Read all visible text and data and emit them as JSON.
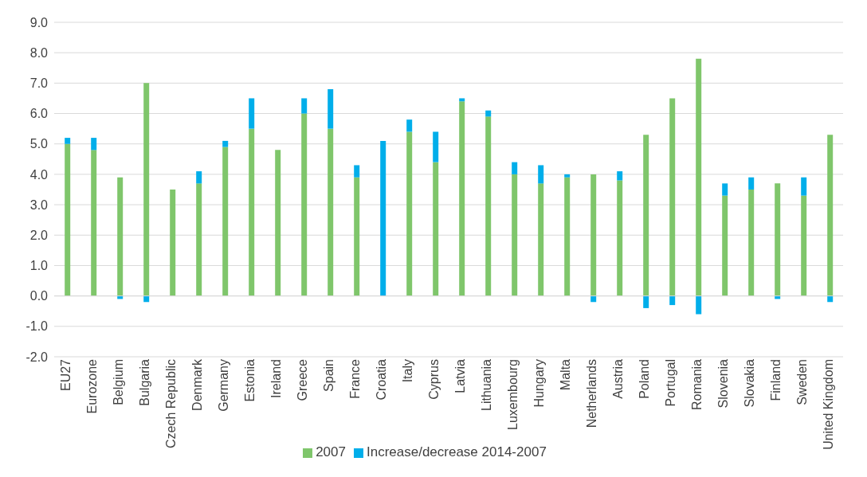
{
  "chart_data": {
    "type": "bar",
    "stacked": true,
    "categories": [
      "EU27",
      "Eurozone",
      "Belgium",
      "Bulgaria",
      "Czech Republic",
      "Denmark",
      "Germany",
      "Estonia",
      "Ireland",
      "Greece",
      "Spain",
      "France",
      "Croatia",
      "Italy",
      "Cyprus",
      "Latvia",
      "Lithuania",
      "Luxembourg",
      "Hungary",
      "Malta",
      "Netherlands",
      "Austria",
      "Poland",
      "Portugal",
      "Romania",
      "Slovenia",
      "Slovakia",
      "Finland",
      "Sweden",
      "United Kingdom"
    ],
    "series": [
      {
        "name": "2007",
        "color": "#7fc66b",
        "values": [
          5.0,
          4.8,
          3.9,
          7.0,
          3.5,
          3.7,
          4.9,
          5.5,
          4.8,
          6.0,
          5.5,
          3.9,
          null,
          5.4,
          4.4,
          6.4,
          5.9,
          4.0,
          3.7,
          3.9,
          4.0,
          3.8,
          5.3,
          6.5,
          7.8,
          3.3,
          3.5,
          3.7,
          3.3,
          5.3
        ]
      },
      {
        "name": "Increase/decrease 2014-2007",
        "color": "#00aeea",
        "values": [
          0.2,
          0.4,
          -0.1,
          -0.2,
          0,
          0.4,
          0.2,
          1.0,
          0,
          0.5,
          1.3,
          0.4,
          5.1,
          0.4,
          1.0,
          0.1,
          0.2,
          0.4,
          0.6,
          0.1,
          -0.2,
          0.3,
          -0.4,
          -0.3,
          -0.6,
          0.4,
          0.4,
          -0.1,
          0.6,
          -0.2
        ]
      }
    ],
    "ylim": [
      -2,
      9
    ],
    "yticks": [
      {
        "value": -2,
        "label": "-2.0"
      },
      {
        "value": -1,
        "label": "-1.0"
      },
      {
        "value": 0,
        "label": "0.0"
      },
      {
        "value": 1,
        "label": "1.0"
      },
      {
        "value": 2,
        "label": "2.0"
      },
      {
        "value": 3,
        "label": "3.0"
      },
      {
        "value": 4,
        "label": "4.0"
      },
      {
        "value": 5,
        "label": "5.0"
      },
      {
        "value": 6,
        "label": "6.0"
      },
      {
        "value": 7,
        "label": "7.0"
      },
      {
        "value": 8,
        "label": "8.0"
      },
      {
        "value": 9,
        "label": "9.0"
      }
    ],
    "grid": "y",
    "legend": "bottom"
  }
}
